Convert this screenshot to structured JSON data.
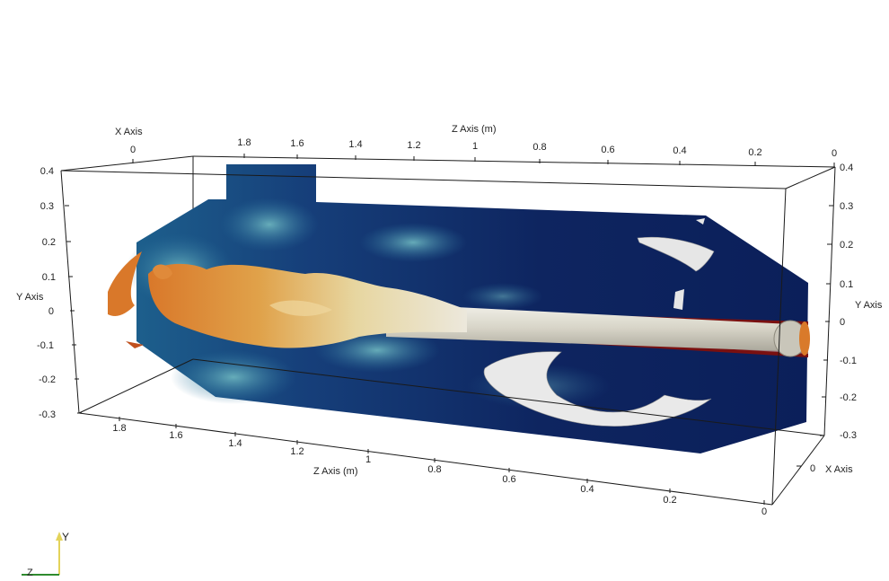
{
  "axes": {
    "x_title_top": "X Axis",
    "x_title_right": "X Axis",
    "z_title_top": "Z Axis (m)",
    "z_title_bottom": "Z Axis (m)",
    "y_title_left": "Y Axis",
    "y_title_right": "Y Axis",
    "x_top_ticks": [
      "0"
    ],
    "x_right_ticks": [
      "0"
    ],
    "z_top_ticks": [
      "1.8",
      "1.6",
      "1.4",
      "1.2",
      "1",
      "0.8",
      "0.6",
      "0.4",
      "0.2",
      "0"
    ],
    "z_bottom_ticks": [
      "1.8",
      "1.6",
      "1.4",
      "1.2",
      "1",
      "0.8",
      "0.6",
      "0.4",
      "0.2",
      "0"
    ],
    "y_left_ticks": [
      "0.4",
      "0.3",
      "0.2",
      "0.1",
      "0",
      "-0.1",
      "-0.2",
      "-0.3"
    ],
    "y_right_ticks": [
      "0.4",
      "0.3",
      "0.2",
      "0.1",
      "0",
      "-0.1",
      "-0.2",
      "-0.3"
    ]
  },
  "orientation": {
    "y_label": "Y",
    "z_label": "Z"
  },
  "colors": {
    "background": "#ffffff",
    "field_deep": "#0b1f5a",
    "field_mid": "#1f5f8b",
    "field_light": "#7fc3c6",
    "plume_orange": "#d9802c",
    "plume_gold": "#e2b45a",
    "jet_white": "#e8e6dc",
    "jet_red": "#7a1010",
    "axis_y": "#e3d35a",
    "axis_z": "#2e8b2e"
  }
}
